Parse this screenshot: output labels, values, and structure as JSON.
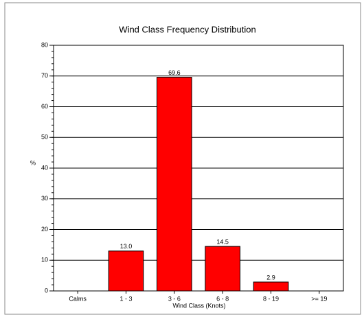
{
  "chart_data": {
    "type": "bar",
    "title": "Wind Class Frequency Distribution",
    "x_label": "Wind Class (Knots)",
    "y_label": "%",
    "categories": [
      "Calms",
      "1 - 3",
      "3 - 6",
      "6 - 8",
      "8 - 19",
      ">= 19"
    ],
    "values": [
      0,
      13,
      69.6,
      14.5,
      2.9,
      0
    ],
    "value_labels": [
      null,
      "13.0",
      "69.6",
      "14.5",
      "2.9",
      null
    ],
    "color": "#ff0000",
    "ylim": [
      0,
      80
    ],
    "yticks": [
      0,
      10,
      20,
      30,
      40,
      50,
      60,
      70,
      80
    ],
    "grid": true
  }
}
